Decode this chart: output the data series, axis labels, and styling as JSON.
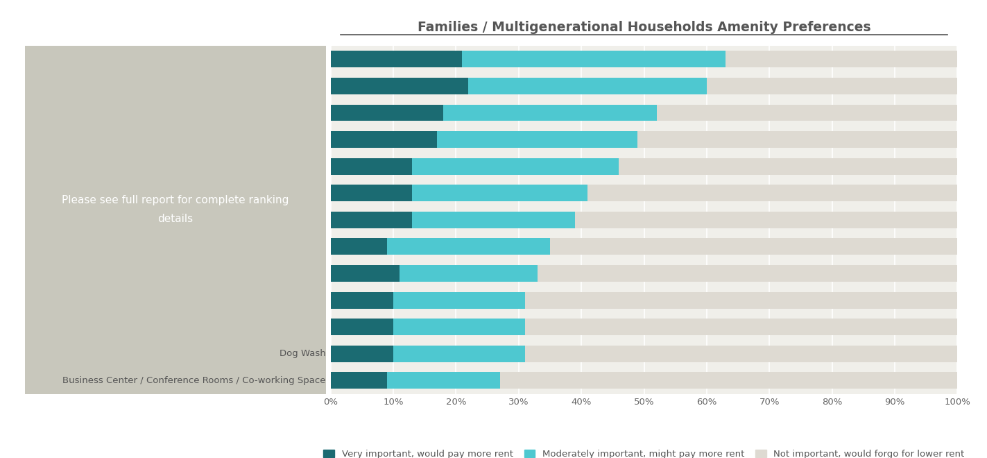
{
  "title": "Families / Multigenerational Households Amenity Preferences",
  "categories": [
    "",
    "",
    "",
    "",
    "",
    "",
    "",
    "",
    "",
    "",
    "",
    "Dog Wash",
    "Business Center / Conference Rooms / Co-working Space"
  ],
  "very_important": [
    21,
    22,
    18,
    17,
    13,
    13,
    13,
    9,
    11,
    10,
    10,
    10,
    9
  ],
  "moderately_important": [
    42,
    38,
    34,
    32,
    33,
    28,
    26,
    26,
    22,
    21,
    21,
    21,
    18
  ],
  "not_important": [
    37,
    40,
    48,
    51,
    54,
    59,
    61,
    65,
    67,
    69,
    69,
    69,
    73
  ],
  "color_very": "#1b6b72",
  "color_moderate": "#4ec8d0",
  "color_not": "#dedad2",
  "color_gray_box": "#c8c7bc",
  "gray_text": "Please see full report for complete ranking\ndetails",
  "legend_very": "Very important, would pay more rent",
  "legend_moderate": "Moderately important, might pay more rent",
  "legend_not": "Not important, would forgo for lower rent",
  "plot_bg": "#f0efea",
  "xticks": [
    0,
    10,
    20,
    30,
    40,
    50,
    60,
    70,
    80,
    90,
    100
  ]
}
